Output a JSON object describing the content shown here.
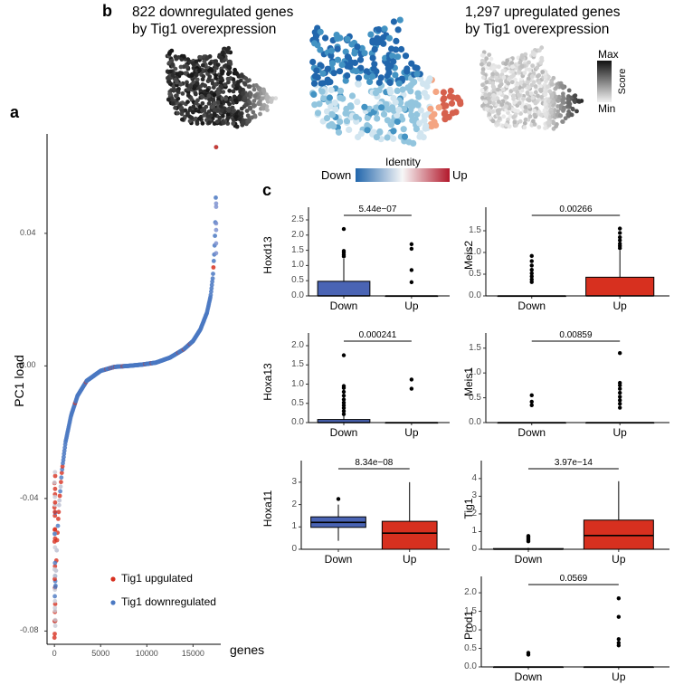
{
  "panels": {
    "a": "a",
    "b": "b",
    "c": "c"
  },
  "panel_b": {
    "left_title_line1": "822 downregulated genes",
    "left_title_line2": "by Tig1 overexpression",
    "right_title_line1": "1,297 upregulated genes",
    "right_title_line2": "by Tig1 overexpression",
    "identity_legend": {
      "title": "Identity",
      "low": "Down",
      "high": "Up",
      "low_color": "#2166ac",
      "mid_color": "#f7f7f7",
      "high_color": "#b2182b"
    },
    "score_legend": {
      "title": "Score",
      "max": "Max",
      "min": "Min"
    }
  },
  "chart_data": [
    {
      "id": "pc1-load",
      "type": "scatter",
      "title": "",
      "xlabel": "genes",
      "ylabel": "PC1 load",
      "xlim": [
        -800,
        18000
      ],
      "ylim": [
        -0.084,
        0.07
      ],
      "xticks": [
        0,
        5000,
        10000,
        15000
      ],
      "xtick_labels": [
        "0",
        "5000",
        "10000",
        "15000"
      ],
      "yticks": [
        -0.08,
        -0.04,
        0.0,
        0.04
      ],
      "ytick_labels": [
        "-0.08",
        "-0.04",
        "0.00",
        "0.04"
      ],
      "n_genes": 17500,
      "curve_points": [
        [
          0,
          -0.082
        ],
        [
          60,
          -0.075
        ],
        [
          150,
          -0.063
        ],
        [
          300,
          -0.052
        ],
        [
          500,
          -0.042
        ],
        [
          800,
          -0.032
        ],
        [
          1200,
          -0.023
        ],
        [
          1800,
          -0.015
        ],
        [
          2500,
          -0.009
        ],
        [
          3500,
          -0.0045
        ],
        [
          5000,
          -0.0015
        ],
        [
          6500,
          -0.0003
        ],
        [
          8000,
          0.0
        ],
        [
          9500,
          0.0004
        ],
        [
          11000,
          0.001
        ],
        [
          12500,
          0.0025
        ],
        [
          14000,
          0.005
        ],
        [
          15000,
          0.0075
        ],
        [
          15800,
          0.011
        ],
        [
          16500,
          0.016
        ],
        [
          16900,
          0.021
        ],
        [
          17150,
          0.027
        ],
        [
          17300,
          0.034
        ],
        [
          17400,
          0.041
        ],
        [
          17450,
          0.048
        ],
        [
          17480,
          0.058
        ],
        [
          17500,
          0.066
        ]
      ],
      "series": [
        {
          "name": "Tig1 upgulated",
          "color": "#d7301f"
        },
        {
          "name": "Tig1 downregulated",
          "color": "#4a78c2"
        }
      ],
      "legend_position": "bottom-right"
    },
    {
      "id": "box-hoxd13",
      "type": "box",
      "ylabel": "Hoxd13",
      "categories": [
        "Down",
        "Up"
      ],
      "ylim": [
        0,
        2.5
      ],
      "yticks": [
        0.0,
        0.5,
        1.0,
        1.5,
        2.0,
        2.5
      ],
      "ytick_labels": [
        "0.0",
        "0.5",
        "1.0",
        "1.5",
        "2.0",
        "2.5"
      ],
      "boxes": [
        {
          "q1": 0,
          "median": 0,
          "q3": 0.48,
          "whisker_low": 0,
          "whisker_high": 1.22,
          "outliers": [
            1.3,
            1.35,
            1.42,
            1.48,
            2.2
          ],
          "color": "#4a64b4"
        },
        {
          "q1": 0,
          "median": 0,
          "q3": 0,
          "whisker_low": 0,
          "whisker_high": 0,
          "outliers": [
            0.45,
            0.85,
            1.55,
            1.7
          ],
          "color": "#4a64b4"
        }
      ],
      "pvalue": "5.44e−07"
    },
    {
      "id": "box-meis2",
      "type": "box",
      "ylabel": "Meis2",
      "categories": [
        "Down",
        "Up"
      ],
      "ylim": [
        0,
        1.75
      ],
      "yticks": [
        0.0,
        0.5,
        1.0,
        1.5
      ],
      "ytick_labels": [
        "0.0",
        "0.5",
        "1.0",
        "1.5"
      ],
      "boxes": [
        {
          "q1": 0,
          "median": 0,
          "q3": 0,
          "whisker_low": 0,
          "whisker_high": 0,
          "outliers": [
            0.32,
            0.38,
            0.45,
            0.52,
            0.6,
            0.7,
            0.8,
            0.92
          ],
          "color": "#d7301f"
        },
        {
          "q1": 0,
          "median": 0,
          "q3": 0.43,
          "whisker_low": 0,
          "whisker_high": 1.05,
          "outliers": [
            1.1,
            1.15,
            1.2,
            1.28,
            1.35,
            1.45,
            1.55
          ],
          "color": "#d7301f"
        }
      ],
      "pvalue": "0.00266"
    },
    {
      "id": "box-hoxa13",
      "type": "box",
      "ylabel": "Hoxa13",
      "categories": [
        "Down",
        "Up"
      ],
      "ylim": [
        0,
        2.0
      ],
      "yticks": [
        0.0,
        0.5,
        1.0,
        1.5,
        2.0
      ],
      "ytick_labels": [
        "0.0",
        "0.5",
        "1.0",
        "1.5",
        "2.0"
      ],
      "boxes": [
        {
          "q1": 0,
          "median": 0,
          "q3": 0.08,
          "whisker_low": 0,
          "whisker_high": 0.18,
          "outliers": [
            0.22,
            0.3,
            0.38,
            0.45,
            0.52,
            0.6,
            0.7,
            0.8,
            0.9,
            0.95,
            1.75
          ],
          "color": "#4a64b4"
        },
        {
          "q1": 0,
          "median": 0,
          "q3": 0,
          "whisker_low": 0,
          "whisker_high": 0,
          "outliers": [
            0.88,
            1.12
          ],
          "color": "#4a64b4"
        }
      ],
      "pvalue": "0.000241"
    },
    {
      "id": "box-meis1",
      "type": "box",
      "ylabel": "Meis1",
      "categories": [
        "Down",
        "Up"
      ],
      "ylim": [
        0,
        1.55
      ],
      "yticks": [
        0.0,
        0.5,
        1.0,
        1.5
      ],
      "ytick_labels": [
        "0.0",
        "0.5",
        "1.0",
        "1.5"
      ],
      "boxes": [
        {
          "q1": 0,
          "median": 0,
          "q3": 0,
          "whisker_low": 0,
          "whisker_high": 0,
          "outliers": [
            0.35,
            0.42,
            0.55
          ],
          "color": "#d7301f"
        },
        {
          "q1": 0,
          "median": 0,
          "q3": 0,
          "whisker_low": 0,
          "whisker_high": 0,
          "outliers": [
            0.3,
            0.38,
            0.45,
            0.52,
            0.6,
            0.68,
            0.75,
            0.8,
            1.4
          ],
          "color": "#d7301f"
        }
      ],
      "pvalue": "0.00859"
    },
    {
      "id": "box-hoxa11",
      "type": "box",
      "ylabel": "Hoxa11",
      "categories": [
        "Down",
        "Up"
      ],
      "ylim": [
        0,
        3.4
      ],
      "yticks": [
        0,
        1,
        2,
        3
      ],
      "ytick_labels": [
        "0",
        "1",
        "2",
        "3"
      ],
      "boxes": [
        {
          "q1": 0.98,
          "median": 1.2,
          "q3": 1.45,
          "whisker_low": 0.38,
          "whisker_high": 2.0,
          "outliers": [
            2.25
          ],
          "color": "#4a64b4"
        },
        {
          "q1": 0,
          "median": 0.72,
          "q3": 1.25,
          "whisker_low": 0,
          "whisker_high": 3.0,
          "outliers": [],
          "color": "#d7301f"
        }
      ],
      "pvalue": "8.34e−08"
    },
    {
      "id": "box-tig1",
      "type": "box",
      "ylabel": "Tig1",
      "categories": [
        "Down",
        "Up"
      ],
      "ylim": [
        0,
        4.3
      ],
      "yticks": [
        0,
        1,
        2,
        3,
        4
      ],
      "ytick_labels": [
        "0",
        "1",
        "2",
        "3",
        "4"
      ],
      "boxes": [
        {
          "q1": 0,
          "median": 0,
          "q3": 0.04,
          "whisker_low": 0,
          "whisker_high": 0.08,
          "outliers": [
            0.45,
            0.52,
            0.6,
            0.68,
            0.75
          ],
          "color": "#4a64b4"
        },
        {
          "q1": 0,
          "median": 0.78,
          "q3": 1.65,
          "whisker_low": 0,
          "whisker_high": 3.85,
          "outliers": [],
          "color": "#d7301f"
        }
      ],
      "pvalue": "3.97e−14"
    },
    {
      "id": "box-prod1",
      "type": "box",
      "ylabel": "Prod1",
      "categories": [
        "Down",
        "Up"
      ],
      "ylim": [
        0,
        2.1
      ],
      "yticks": [
        0.0,
        0.5,
        1.0,
        1.5,
        2.0
      ],
      "ytick_labels": [
        "0.0",
        "0.5",
        "1.0",
        "1.5",
        "2.0"
      ],
      "boxes": [
        {
          "q1": 0,
          "median": 0,
          "q3": 0,
          "whisker_low": 0,
          "whisker_high": 0,
          "outliers": [
            0.33,
            0.38
          ],
          "color": "#4a64b4"
        },
        {
          "q1": 0,
          "median": 0,
          "q3": 0,
          "whisker_low": 0,
          "whisker_high": 0,
          "outliers": [
            0.58,
            0.65,
            0.75,
            1.35,
            1.85
          ],
          "color": "#4a64b4"
        }
      ],
      "pvalue": "0.0569"
    }
  ]
}
